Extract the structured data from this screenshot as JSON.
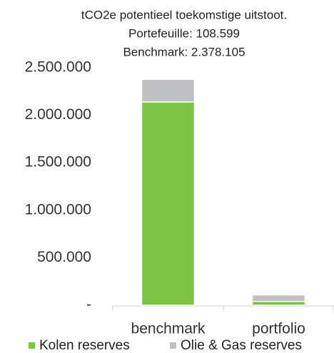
{
  "chart_data": {
    "type": "stacked_bar",
    "title": "tCO2e potentieel toekomstige uitstoot.",
    "subtitle": [
      "Portefeuille: 108.599",
      "Benchmark: 2.378.105"
    ],
    "categories": [
      "benchmark",
      "portfolio"
    ],
    "series": [
      {
        "name": "Kolen reserves",
        "color": "#7dc242",
        "values": [
          2140000,
          40000
        ]
      },
      {
        "name": "Olie & Gas reserves",
        "color": "#bfc0c4",
        "values": [
          238105,
          68599
        ]
      }
    ],
    "ylim": [
      0,
      2500000
    ],
    "yticks": [
      {
        "value": 0,
        "label": "-"
      },
      {
        "value": 500000,
        "label": "500.000"
      },
      {
        "value": 1000000,
        "label": "1.000.000"
      },
      {
        "value": 1500000,
        "label": "1.500.000"
      },
      {
        "value": 2000000,
        "label": "2.000.000"
      },
      {
        "value": 2500000,
        "label": "2.500.000"
      }
    ],
    "legend": "bottom"
  }
}
